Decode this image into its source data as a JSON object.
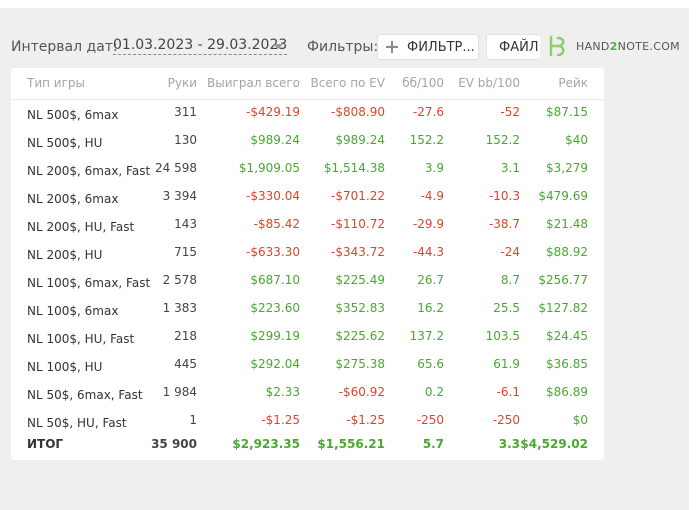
{
  "toolbar": {
    "date_label": "Интервал дат:",
    "date_range": "01.03.2023 - 29.03.2023",
    "filters_label": "Фильтры:",
    "filter_button": "ФИЛЬТР...",
    "file_button": "ФАЙЛ.",
    "logo_text_left": "HAND",
    "logo_text_mid": "2",
    "logo_text_right": "NOTE.COM"
  },
  "table": {
    "columns": [
      "Тип игры",
      "Руки",
      "Выиграл всего",
      "Всего по EV",
      "бб/100",
      "EV bb/100",
      "Рейк"
    ],
    "rows": [
      {
        "game": "NL 500$, 6max",
        "hands": "311",
        "won": "-$429.19",
        "ev": "-$808.90",
        "bb100": "-27.6",
        "evbb": "-52",
        "rake": "$87.15"
      },
      {
        "game": "NL 500$, HU",
        "hands": "130",
        "won": "$989.24",
        "ev": "$989.24",
        "bb100": "152.2",
        "evbb": "152.2",
        "rake": "$40"
      },
      {
        "game": "NL 200$, 6max, Fast",
        "hands": "24 598",
        "won": "$1,909.05",
        "ev": "$1,514.38",
        "bb100": "3.9",
        "evbb": "3.1",
        "rake": "$3,279"
      },
      {
        "game": "NL 200$, 6max",
        "hands": "3 394",
        "won": "-$330.04",
        "ev": "-$701.22",
        "bb100": "-4.9",
        "evbb": "-10.3",
        "rake": "$479.69"
      },
      {
        "game": "NL 200$, HU, Fast",
        "hands": "143",
        "won": "-$85.42",
        "ev": "-$110.72",
        "bb100": "-29.9",
        "evbb": "-38.7",
        "rake": "$21.48"
      },
      {
        "game": "NL 200$, HU",
        "hands": "715",
        "won": "-$633.30",
        "ev": "-$343.72",
        "bb100": "-44.3",
        "evbb": "-24",
        "rake": "$88.92"
      },
      {
        "game": "NL 100$, 6max, Fast",
        "hands": "2 578",
        "won": "$687.10",
        "ev": "$225.49",
        "bb100": "26.7",
        "evbb": "8.7",
        "rake": "$256.77"
      },
      {
        "game": "NL 100$, 6max",
        "hands": "1 383",
        "won": "$223.60",
        "ev": "$352.83",
        "bb100": "16.2",
        "evbb": "25.5",
        "rake": "$127.82"
      },
      {
        "game": "NL 100$, HU, Fast",
        "hands": "218",
        "won": "$299.19",
        "ev": "$225.62",
        "bb100": "137.2",
        "evbb": "103.5",
        "rake": "$24.45"
      },
      {
        "game": "NL 100$, HU",
        "hands": "445",
        "won": "$292.04",
        "ev": "$275.38",
        "bb100": "65.6",
        "evbb": "61.9",
        "rake": "$36.85"
      },
      {
        "game": "NL 50$, 6max, Fast",
        "hands": "1 984",
        "won": "$2.33",
        "ev": "-$60.92",
        "bb100": "0.2",
        "evbb": "-6.1",
        "rake": "$86.89"
      },
      {
        "game": "NL 50$, HU, Fast",
        "hands": "1",
        "won": "-$1.25",
        "ev": "-$1.25",
        "bb100": "-250",
        "evbb": "-250",
        "rake": "$0"
      }
    ],
    "total": {
      "game": "ИТОГ",
      "hands": "35 900",
      "won": "$2,923.35",
      "ev": "$1,556.21",
      "bb100": "5.7",
      "evbb": "3.3",
      "rake": "$4,529.02"
    }
  },
  "colors": {
    "positive": "#4aa832",
    "negative": "#d9472b",
    "brand": "#4caf50"
  }
}
